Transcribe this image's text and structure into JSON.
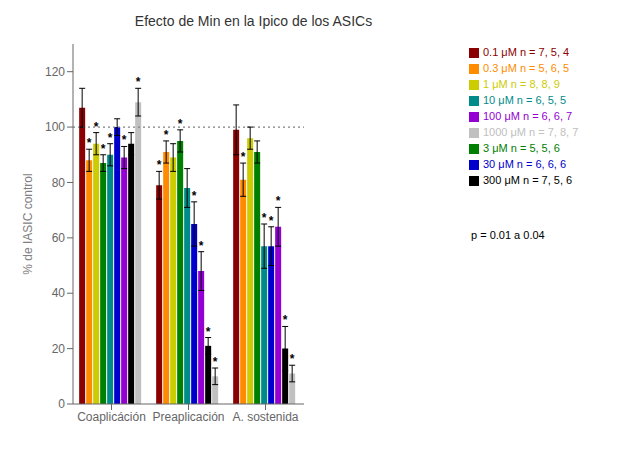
{
  "chart_data": {
    "type": "bar",
    "title": "Efecto de Min en la Ipico de los ASICs",
    "ylabel": "% de IASIC  control",
    "categories": [
      "Coaplicáción",
      "Preaplicación",
      "A. sostenida"
    ],
    "series": [
      {
        "name": "0.1 μM  n = 7, 5, 4",
        "color": "#8B0000",
        "values": [
          107,
          79,
          99
        ],
        "errors": [
          7,
          5,
          9
        ],
        "significant": [
          false,
          true,
          false
        ]
      },
      {
        "name": "0.3 μM  n = 5, 6, 5",
        "color": "#FF8C00",
        "values": [
          88,
          91,
          81
        ],
        "errors": [
          4,
          4,
          6
        ],
        "significant": [
          true,
          true,
          true
        ]
      },
      {
        "name": "1 μM  n = 8, 8, 9",
        "color": "#CCCC00",
        "values": [
          94,
          89,
          96
        ],
        "errors": [
          4,
          5,
          4
        ],
        "significant": [
          true,
          false,
          false
        ]
      },
      {
        "name": "3 μM  n = 5, 5, 6",
        "color": "#008000",
        "values": [
          87,
          95,
          91
        ],
        "errors": [
          3,
          4,
          4
        ],
        "significant": [
          true,
          true,
          false
        ]
      },
      {
        "name": "10 μM  n = 6, 5, 5",
        "color": "#008B8B",
        "values": [
          90,
          78,
          57
        ],
        "errors": [
          4,
          7,
          8
        ],
        "significant": [
          true,
          false,
          true
        ]
      },
      {
        "name": "30 μM  n = 6, 6, 6",
        "color": "#0000CD",
        "values": [
          100,
          65,
          57
        ],
        "errors": [
          3,
          8,
          7
        ],
        "significant": [
          false,
          true,
          true
        ]
      },
      {
        "name": "100 μM  n = 6, 6, 7",
        "color": "#9400D3",
        "values": [
          89,
          48,
          64
        ],
        "errors": [
          4,
          7,
          7
        ],
        "significant": [
          true,
          true,
          true
        ]
      },
      {
        "name": "300 μM  n = 7, 5, 6",
        "color": "#000000",
        "values": [
          94,
          21,
          20
        ],
        "errors": [
          4,
          3,
          8
        ],
        "significant": [
          false,
          true,
          true
        ]
      },
      {
        "name": "1000 μM  n = 7, 8, 7",
        "color": "#C0C0C0",
        "values": [
          109,
          10,
          11
        ],
        "errors": [
          5,
          3,
          3
        ],
        "significant": [
          true,
          true,
          true
        ]
      }
    ],
    "ylim": [
      0,
      130
    ],
    "yticks": [
      0,
      20,
      40,
      60,
      80,
      100,
      120
    ],
    "reference_line": 100,
    "significance_mark": "*",
    "annotation": "p = 0.01 a 0.04",
    "legend": "right"
  }
}
